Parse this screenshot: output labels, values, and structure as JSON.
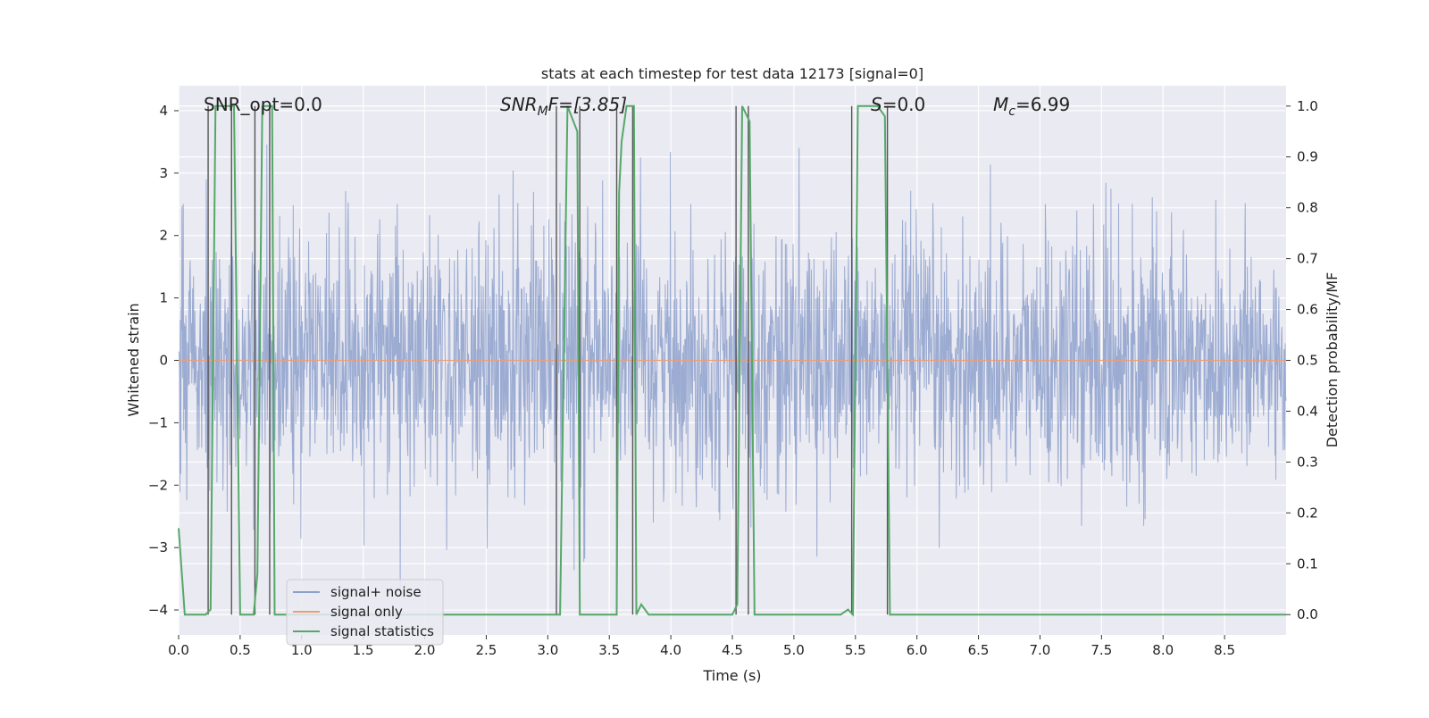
{
  "chart_data": {
    "type": "line",
    "title": "stats at each timestep for test data 12173 [signal=0]",
    "xlabel": "Time (s)",
    "ylabel": "Whitened strain",
    "y2label": "Detection probability/MF",
    "xlim": [
      0.0,
      9.0
    ],
    "ylim": [
      -4.4,
      4.4
    ],
    "y2lim": [
      -0.04,
      1.04
    ],
    "xticks": [
      "0.0",
      "0.5",
      "1.0",
      "1.5",
      "2.0",
      "2.5",
      "3.0",
      "3.5",
      "4.0",
      "4.5",
      "5.0",
      "5.5",
      "6.0",
      "6.5",
      "7.0",
      "7.5",
      "8.0",
      "8.5"
    ],
    "xtick_values": [
      0.0,
      0.5,
      1.0,
      1.5,
      2.0,
      2.5,
      3.0,
      3.5,
      4.0,
      4.5,
      5.0,
      5.5,
      6.0,
      6.5,
      7.0,
      7.5,
      8.0,
      8.5
    ],
    "yticks": [
      "−4",
      "−3",
      "−2",
      "−1",
      "0",
      "1",
      "2",
      "3",
      "4"
    ],
    "ytick_values": [
      -4,
      -3,
      -2,
      -1,
      0,
      1,
      2,
      3,
      4
    ],
    "y2ticks": [
      "0.0",
      "0.1",
      "0.2",
      "0.3",
      "0.4",
      "0.5",
      "0.6",
      "0.7",
      "0.8",
      "0.9",
      "1.0"
    ],
    "y2tick_values": [
      0.0,
      0.1,
      0.2,
      0.3,
      0.4,
      0.5,
      0.6,
      0.7,
      0.8,
      0.9,
      1.0
    ],
    "grid": true,
    "legend_position": "lower-left",
    "annotations": {
      "snr_opt": "SNR_opt=0.0",
      "snr_mf_prefix": "SNR",
      "snr_mf_sub": "M",
      "snr_mf_suffix": "F=[3.85]",
      "s_prefix": "S",
      "s_suffix": "=0.0",
      "mc_prefix": "M",
      "mc_sub": "c",
      "mc_suffix": "=6.99"
    },
    "series": [
      {
        "name": "signal+ noise",
        "color": "#8da0cb",
        "axis": "left",
        "description_values": "whitened strain, noise amplitude roughly ±2, spikes up to ±3.9",
        "amplitude_std": 1.0
      },
      {
        "name": "signal only",
        "color": "#e8a07a",
        "axis": "left",
        "values": "zero (no signal)"
      },
      {
        "name": "signal statistics",
        "color": "#55a868",
        "axis": "right",
        "x": [
          0.0,
          0.05,
          0.22,
          0.26,
          0.3,
          0.33,
          0.42,
          0.45,
          0.5,
          0.54,
          0.61,
          0.64,
          0.68,
          0.71,
          0.74,
          0.76,
          0.78,
          0.82,
          3.02,
          3.06,
          3.1,
          3.16,
          3.24,
          3.26,
          3.32,
          3.52,
          3.56,
          3.58,
          3.6,
          3.64,
          3.7,
          3.72,
          3.76,
          3.82,
          4.5,
          4.54,
          4.58,
          4.64,
          4.68,
          4.72,
          5.38,
          5.44,
          5.48,
          5.52,
          5.56,
          5.68,
          5.74,
          5.78,
          5.8,
          9.0
        ],
        "y": [
          0.17,
          0.0,
          0.0,
          0.01,
          1.0,
          1.0,
          1.0,
          1.0,
          0.0,
          0.0,
          0.0,
          0.08,
          1.0,
          1.0,
          1.0,
          1.0,
          0.0,
          0.0,
          0.0,
          0.0,
          0.0,
          1.0,
          0.95,
          0.0,
          0.0,
          0.0,
          0.0,
          0.83,
          0.93,
          1.0,
          1.0,
          0.0,
          0.02,
          0.0,
          0.0,
          0.02,
          1.0,
          0.97,
          0.0,
          0.0,
          0.0,
          0.01,
          0.0,
          1.0,
          1.0,
          1.0,
          0.98,
          0.0,
          0.0,
          0.0
        ]
      },
      {
        "name": "",
        "color": "#555555",
        "axis": "right",
        "kind": "vertical-markers",
        "x": [
          0.24,
          0.43,
          0.62,
          0.74,
          3.07,
          3.26,
          3.56,
          3.69,
          4.53,
          4.63,
          5.47,
          5.76
        ]
      }
    ]
  }
}
